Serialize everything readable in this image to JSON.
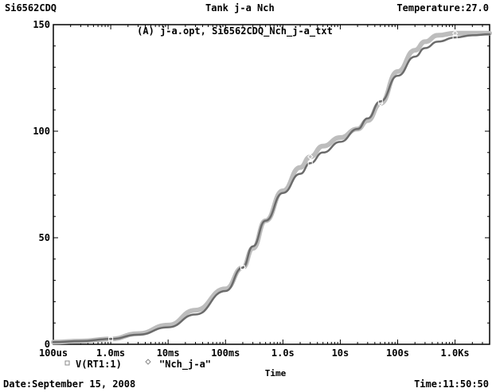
{
  "header": {
    "device": "Si6562CDQ",
    "title": "Tank j-a Nch",
    "temperature": "Temperature:27.0"
  },
  "footer": {
    "date": "Date:September 15, 2008",
    "time": "Time:11:50:50"
  },
  "chart_data": {
    "type": "line",
    "title": "(A) j-a.opt, Si6562CDQ_Nch_j-a_txt",
    "xlabel": "Time",
    "ylabel": "",
    "x_scale": "log",
    "xlim": [
      "100us",
      "4000s"
    ],
    "ylim": [
      0,
      150
    ],
    "grid": false,
    "legend_position": "bottom-left",
    "x_tick_labels": [
      "100us",
      "1.0ms",
      "10ms",
      "100ms",
      "1.0s",
      "10s",
      "100s",
      "1.0Ks"
    ],
    "x_tick_values_s": [
      0.0001,
      0.001,
      0.01,
      0.1,
      1,
      10,
      100,
      1000
    ],
    "y_tick_labels": [
      "0",
      "50",
      "100",
      "150"
    ],
    "y_tick_values": [
      0,
      50,
      100,
      150
    ],
    "series": [
      {
        "name": "V(RT1:1)",
        "color": "#6b6b6b",
        "marker": "square",
        "x_s": [
          0.0001,
          0.0003,
          0.001,
          0.003,
          0.01,
          0.03,
          0.1,
          0.2,
          0.3,
          0.5,
          1,
          2,
          3,
          5,
          10,
          20,
          30,
          50,
          100,
          200,
          300,
          500,
          1000,
          2000,
          4000
        ],
        "y": [
          1,
          1.5,
          2.5,
          4.5,
          8,
          14,
          25,
          36,
          46,
          58,
          71,
          80,
          85,
          90,
          95,
          101,
          106,
          114,
          126,
          135,
          139,
          142,
          144,
          145,
          145.5
        ]
      },
      {
        "name": "\"Nch_j-a\"",
        "color": "#bdbdbd",
        "marker": "diamond",
        "x_s": [
          0.0001,
          0.0003,
          0.001,
          0.003,
          0.01,
          0.03,
          0.1,
          0.2,
          0.3,
          0.5,
          1,
          2,
          3,
          5,
          10,
          20,
          30,
          50,
          100,
          200,
          300,
          500,
          1000,
          2000,
          4000
        ],
        "y": [
          1,
          1.5,
          2.5,
          5,
          9,
          16,
          26,
          36,
          45,
          58,
          72,
          83,
          88,
          93,
          97,
          101,
          105,
          113,
          128,
          138,
          142,
          145,
          146,
          146,
          146
        ]
      }
    ]
  }
}
